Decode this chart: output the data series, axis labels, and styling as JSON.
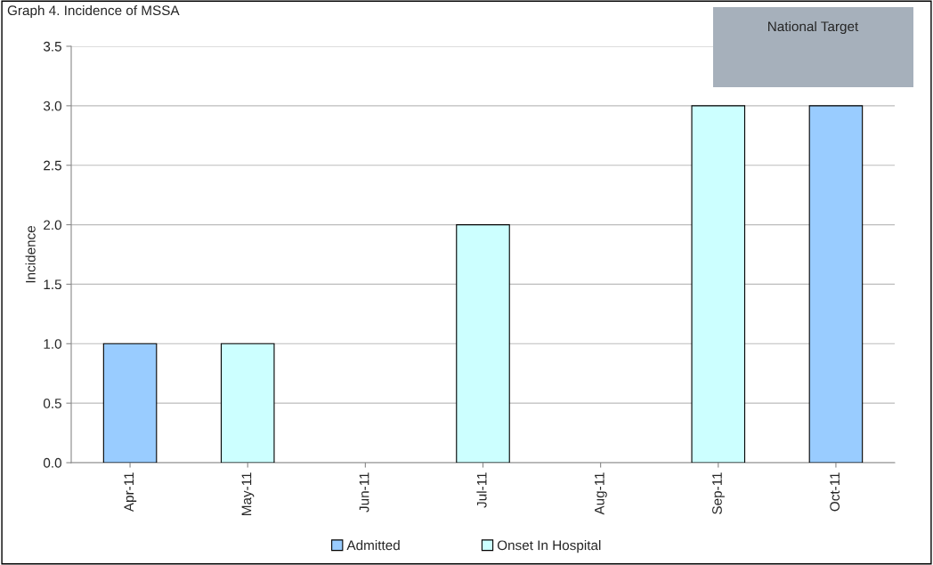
{
  "chart_data": {
    "type": "bar",
    "title": "Graph 4. Incidence of MSSA",
    "ylabel": "Incidence",
    "categories": [
      "Apr-11",
      "May-11",
      "Jun-11",
      "Jul-11",
      "Aug-11",
      "Sep-11",
      "Oct-11"
    ],
    "series": [
      {
        "name": "Admitted",
        "color": "#99ccff",
        "values": [
          1,
          null,
          null,
          null,
          null,
          null,
          3
        ]
      },
      {
        "name": "Onset In Hospital",
        "color": "#ccffff",
        "values": [
          null,
          1,
          null,
          2,
          null,
          3,
          null
        ]
      }
    ],
    "ylim": [
      0,
      3.5
    ],
    "yticks": [
      {
        "value": 0,
        "label": "0.0"
      },
      {
        "value": 0.5,
        "label": "0.5"
      },
      {
        "value": 1,
        "label": "1.0"
      },
      {
        "value": 1.5,
        "label": "1.5"
      },
      {
        "value": 2,
        "label": "2.0"
      },
      {
        "value": 2.5,
        "label": "2.5"
      },
      {
        "value": 3,
        "label": "3.0"
      },
      {
        "value": 3.5,
        "label": "3.5"
      }
    ],
    "grid": "y",
    "legend": "bottom",
    "annotations": [
      "National Target"
    ]
  }
}
